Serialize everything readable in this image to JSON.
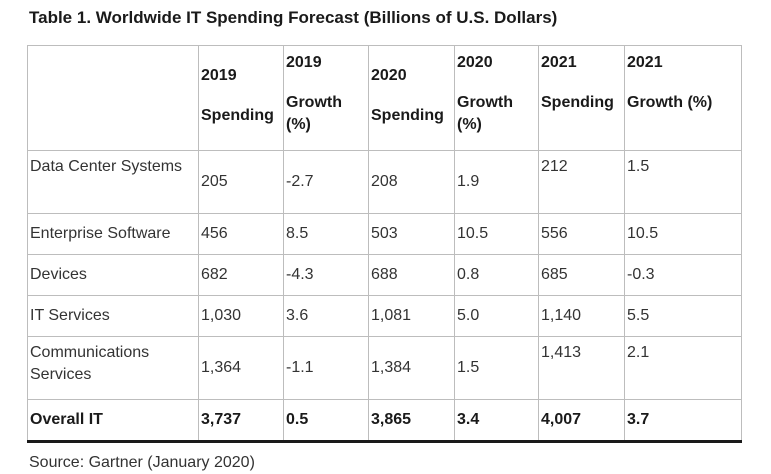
{
  "title": "Table 1. Worldwide IT Spending Forecast (Billions of U.S. Dollars)",
  "columns": [
    {
      "year": "2019",
      "metric": "Spending"
    },
    {
      "year": "2019",
      "metric": "Growth (%)"
    },
    {
      "year": "2020",
      "metric": "Spending"
    },
    {
      "year": "2020",
      "metric": "Growth (%)"
    },
    {
      "year": "2021",
      "metric": "Spending"
    },
    {
      "year": "2021",
      "metric": "Growth (%)"
    }
  ],
  "rows": [
    {
      "label": "Data Center Systems",
      "values": [
        "205",
        "-2.7",
        "208",
        "1.9",
        "212",
        "1.5"
      ]
    },
    {
      "label": "Enterprise Software",
      "values": [
        "456",
        "8.5",
        "503",
        "10.5",
        "556",
        "10.5"
      ]
    },
    {
      "label": "Devices",
      "values": [
        "682",
        "-4.3",
        "688",
        "0.8",
        "685",
        "-0.3"
      ]
    },
    {
      "label": "IT Services",
      "values": [
        "1,030",
        "3.6",
        "1,081",
        "5.0",
        "1,140",
        "5.5"
      ]
    },
    {
      "label": "Communications Services",
      "values": [
        "1,364",
        "-1.1",
        "1,384",
        "1.5",
        "1,413",
        "2.1"
      ]
    },
    {
      "label": "Overall IT",
      "values": [
        "3,737",
        "0.5",
        "3,865",
        "3.4",
        "4,007",
        "3.7"
      ]
    }
  ],
  "source": "Source: Gartner (January 2020)"
}
